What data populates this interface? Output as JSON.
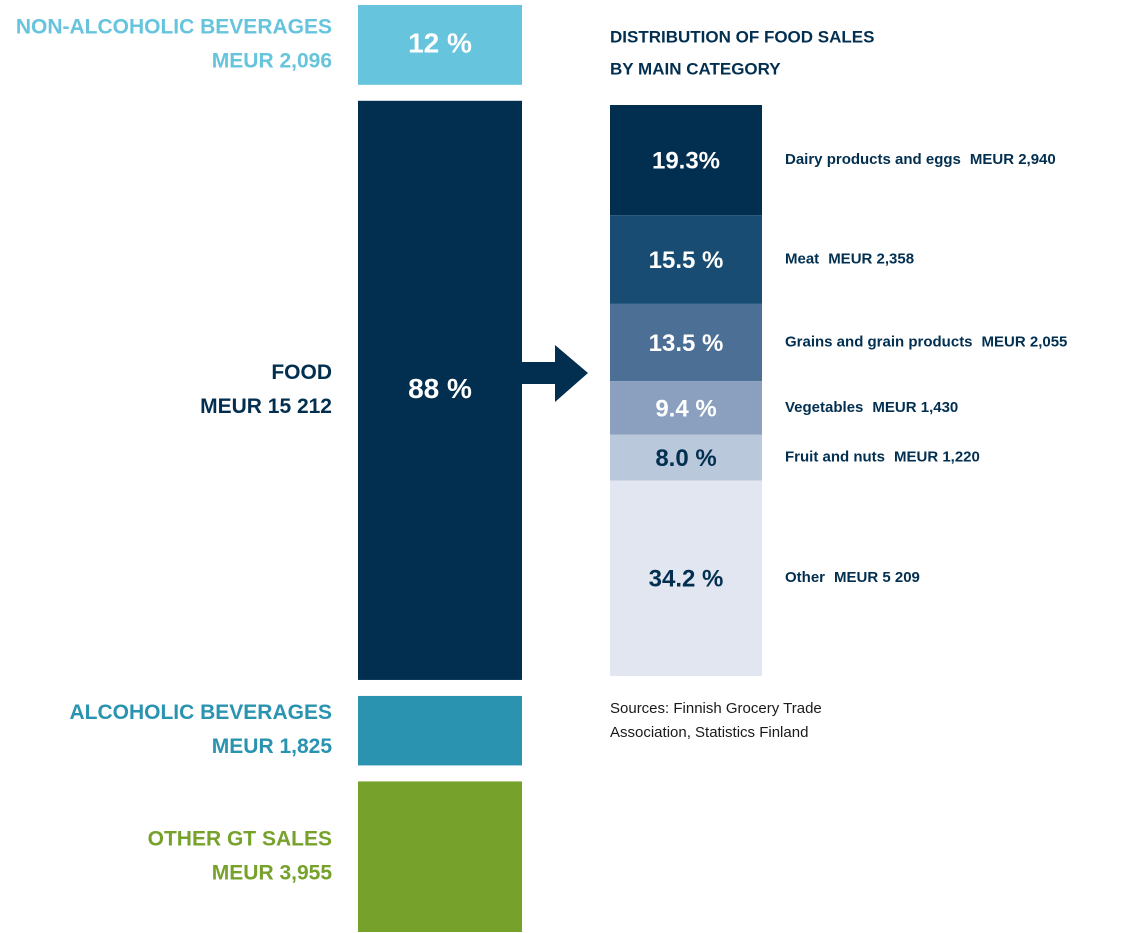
{
  "chart_data": [
    {
      "type": "stacked-bar",
      "categories": [
        "NON-ALCOHOLIC BEVERAGES",
        "FOOD",
        "ALCOHOLIC BEVERAGES",
        "OTHER GT SALES"
      ],
      "values": [
        2096,
        15212,
        1825,
        3955
      ],
      "value_labels": [
        "MEUR 2,096",
        "MEUR 15 212",
        "MEUR 1,825",
        "MEUR 3,955"
      ],
      "share_labels": [
        "12 %",
        "88 %"
      ],
      "colors": [
        "#66c4dc",
        "#022f50",
        "#2a93b0",
        "#76a22c"
      ]
    },
    {
      "type": "stacked-bar",
      "title": "DISTRIBUTION OF FOOD SALES",
      "subtitle": "BY MAIN CATEGORY",
      "categories": [
        "Dairy products and eggs",
        "Meat",
        "Grains and grain products",
        "Vegetables",
        "Fruit and nuts",
        "Other"
      ],
      "values": [
        19.3,
        15.5,
        13.5,
        9.4,
        8.0,
        34.2
      ],
      "value_labels": [
        "19.3%",
        "15.5 %",
        "13.5 %",
        "9.4 %",
        "8.0 %",
        "34.2 %"
      ],
      "amount_labels": [
        "MEUR 2,940",
        "MEUR 2,358",
        "MEUR 2,055",
        "MEUR 1,430",
        "MEUR 1,220",
        "MEUR 5 209"
      ],
      "colors": [
        "#022f50",
        "#184c72",
        "#4c6f95",
        "#8aa0be",
        "#bac8dc",
        "#e1e6f0"
      ],
      "label_colors": [
        "#ffffff",
        "#ffffff",
        "#ffffff",
        "#ffffff",
        "#022f50",
        "#022f50"
      ]
    }
  ],
  "source": [
    "Sources: Finnish Grocery Trade",
    "Association, Statistics Finland"
  ]
}
